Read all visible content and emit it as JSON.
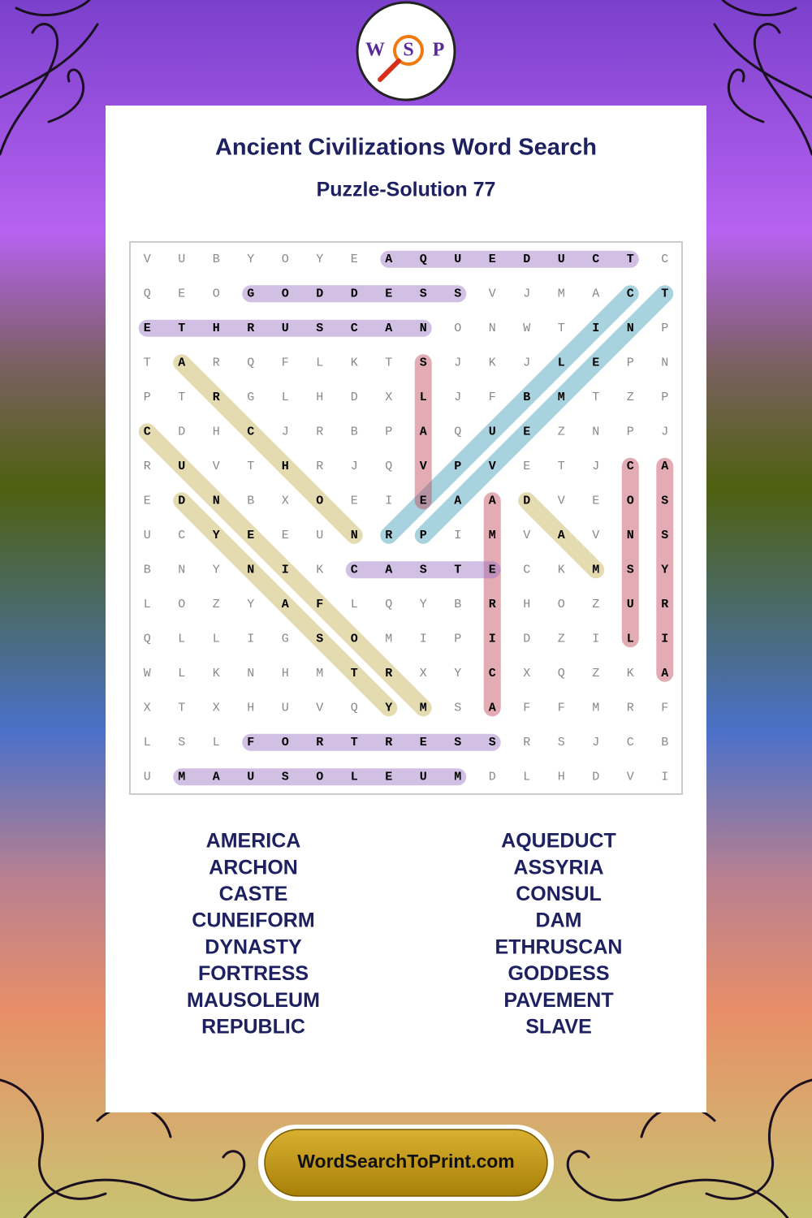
{
  "logo": {
    "letters": [
      "W",
      "S",
      "P"
    ]
  },
  "header": {
    "title": "Ancient Civilizations Word Search",
    "subtitle": "Puzzle-Solution 77"
  },
  "grid": {
    "rows": [
      [
        "V",
        "U",
        "B",
        "Y",
        "O",
        "Y",
        "E",
        "A",
        "Q",
        "U",
        "E",
        "D",
        "U",
        "C",
        "T",
        "C"
      ],
      [
        "Q",
        "E",
        "O",
        "G",
        "O",
        "D",
        "D",
        "E",
        "S",
        "S",
        "V",
        "J",
        "M",
        "A",
        "C",
        "T"
      ],
      [
        "E",
        "T",
        "H",
        "R",
        "U",
        "S",
        "C",
        "A",
        "N",
        "O",
        "N",
        "W",
        "T",
        "I",
        "N",
        "P"
      ],
      [
        "T",
        "A",
        "R",
        "Q",
        "F",
        "L",
        "K",
        "T",
        "S",
        "J",
        "K",
        "J",
        "L",
        "E",
        "P",
        "N"
      ],
      [
        "P",
        "T",
        "R",
        "G",
        "L",
        "H",
        "D",
        "X",
        "L",
        "J",
        "F",
        "B",
        "M",
        "T",
        "Z",
        "P"
      ],
      [
        "C",
        "D",
        "H",
        "C",
        "J",
        "R",
        "B",
        "P",
        "A",
        "Q",
        "U",
        "E",
        "Z",
        "N",
        "P",
        "J"
      ],
      [
        "R",
        "U",
        "V",
        "T",
        "H",
        "R",
        "J",
        "Q",
        "V",
        "P",
        "V",
        "E",
        "T",
        "J",
        "C",
        "A"
      ],
      [
        "E",
        "D",
        "N",
        "B",
        "X",
        "O",
        "E",
        "I",
        "E",
        "A",
        "A",
        "D",
        "V",
        "E",
        "O",
        "S"
      ],
      [
        "U",
        "C",
        "Y",
        "E",
        "E",
        "U",
        "N",
        "R",
        "P",
        "I",
        "M",
        "V",
        "A",
        "V",
        "N",
        "S"
      ],
      [
        "B",
        "N",
        "Y",
        "N",
        "I",
        "K",
        "C",
        "A",
        "S",
        "T",
        "E",
        "C",
        "K",
        "M",
        "S",
        "Y"
      ],
      [
        "L",
        "O",
        "Z",
        "Y",
        "A",
        "F",
        "L",
        "Q",
        "Y",
        "B",
        "R",
        "H",
        "O",
        "Z",
        "U",
        "R"
      ],
      [
        "Q",
        "L",
        "L",
        "I",
        "G",
        "S",
        "O",
        "M",
        "I",
        "P",
        "I",
        "D",
        "Z",
        "I",
        "L",
        "I"
      ],
      [
        "W",
        "L",
        "K",
        "N",
        "H",
        "M",
        "T",
        "R",
        "X",
        "Y",
        "C",
        "X",
        "Q",
        "Z",
        "K",
        "A"
      ],
      [
        "X",
        "T",
        "X",
        "H",
        "U",
        "V",
        "Q",
        "Y",
        "M",
        "S",
        "A",
        "F",
        "F",
        "M",
        "R",
        "F"
      ],
      [
        "L",
        "S",
        "L",
        "F",
        "O",
        "R",
        "T",
        "R",
        "E",
        "S",
        "S",
        "R",
        "S",
        "J",
        "C",
        "B"
      ],
      [
        "U",
        "M",
        "A",
        "U",
        "S",
        "O",
        "L",
        "E",
        "U",
        "M",
        "D",
        "L",
        "H",
        "D",
        "V",
        "I"
      ]
    ]
  },
  "word_list": {
    "left": [
      "AMERICA",
      "ARCHON",
      "CASTE",
      "CUNEIFORM",
      "DYNASTY",
      "FORTRESS",
      "MAUSOLEUM",
      "REPUBLIC"
    ],
    "right": [
      "AQUEDUCT",
      "ASSYRIA",
      "CONSUL",
      "DAM",
      "ETHRUSCAN",
      "GODDESS",
      "PAVEMENT",
      "SLAVE"
    ]
  },
  "footer": {
    "site": "WordSearchToPrint.com"
  }
}
